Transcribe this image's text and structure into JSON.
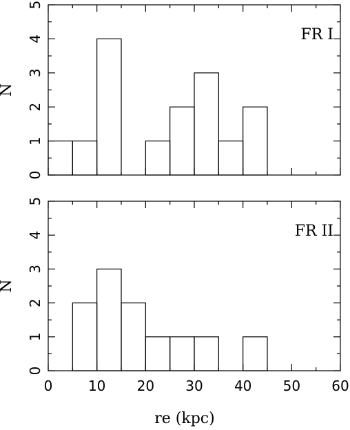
{
  "chart_data": [
    {
      "type": "bar",
      "annotation": "FR I",
      "xlabel": "",
      "ylabel": "N",
      "xlim": [
        0,
        60
      ],
      "ylim": [
        0,
        5
      ],
      "bin_width": 5,
      "bins": [
        0,
        5,
        10,
        15,
        20,
        25,
        30,
        35,
        40,
        45,
        50,
        55
      ],
      "values": [
        1,
        1,
        4,
        0,
        1,
        2,
        3,
        1,
        2,
        0,
        0,
        0
      ],
      "y_ticks": [
        0,
        1,
        2,
        3,
        4,
        5
      ],
      "x_ticks": [
        0,
        10,
        20,
        30,
        40,
        50,
        60
      ],
      "show_x_tick_labels": false
    },
    {
      "type": "bar",
      "annotation": "FR II",
      "xlabel": "re (kpc)",
      "ylabel": "N",
      "xlim": [
        0,
        60
      ],
      "ylim": [
        0,
        5
      ],
      "bin_width": 5,
      "bins": [
        0,
        5,
        10,
        15,
        20,
        25,
        30,
        35,
        40,
        45,
        50,
        55
      ],
      "values": [
        0,
        2,
        3,
        2,
        1,
        1,
        1,
        0,
        1,
        0,
        0,
        0
      ],
      "y_ticks": [
        0,
        1,
        2,
        3,
        4,
        5
      ],
      "x_ticks": [
        0,
        10,
        20,
        30,
        40,
        50,
        60
      ],
      "show_x_tick_labels": true
    }
  ]
}
